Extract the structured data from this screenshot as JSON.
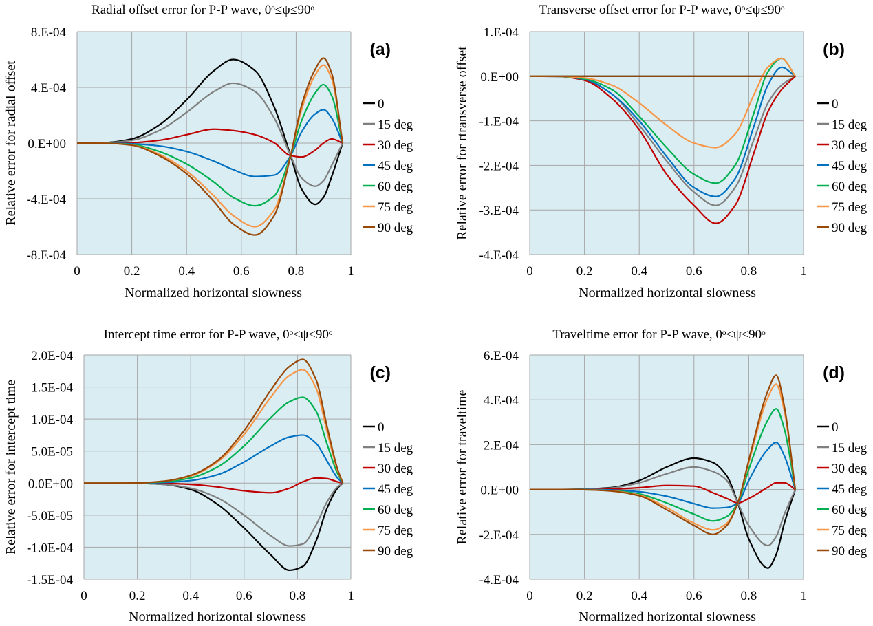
{
  "colors": {
    "plot_background": "#daedf3",
    "gridline": "#a6a6a6",
    "series": {
      "0": "#000000",
      "15 deg": "#7f7f7f",
      "30 deg": "#c00000",
      "45 deg": "#0070c0",
      "60 deg": "#00b050",
      "75 deg": "#f79646",
      "90 deg": "#984807"
    }
  },
  "chart_data": [
    {
      "type": "line",
      "panel_label": "(a)",
      "title": "Radial offset error for P-P wave, 0ᵒ≤ψ≤90ᵒ",
      "xlabel": "Normalized horizontal slowness",
      "ylabel": "Relative error for radial offset",
      "xlim": [
        0,
        1
      ],
      "ylim": [
        -0.0008,
        0.0008
      ],
      "xticks": [
        0,
        0.2,
        0.4,
        0.6,
        0.8,
        1
      ],
      "xtick_labels": [
        "0",
        "0.2",
        "0.4",
        "0.6",
        "0.8",
        "1"
      ],
      "yticks": [
        0.0008,
        0.0004,
        0,
        -0.0004,
        -0.0008
      ],
      "ytick_labels": [
        "8.E-04",
        "4.E-04",
        "0.E+00",
        "-4.E-04",
        "-8.E-04"
      ],
      "grid": true,
      "legend_position": "right",
      "x": [
        0,
        0.1,
        0.2,
        0.3,
        0.4,
        0.5,
        0.57,
        0.65,
        0.72,
        0.78,
        0.82,
        0.87,
        0.9,
        0.93,
        0.97
      ],
      "series": [
        {
          "name": "0",
          "values": [
            0,
            3e-06,
            3e-05,
            0.00013,
            0.00031,
            0.00052,
            0.0006,
            0.00052,
            0.00026,
            -9e-05,
            -0.00033,
            -0.00044,
            -0.00039,
            -0.00024,
            0
          ]
        },
        {
          "name": "15 deg",
          "values": [
            0,
            2e-06,
            2e-05,
            9e-05,
            0.00022,
            0.00037,
            0.00043,
            0.00037,
            0.00018,
            -9e-05,
            -0.00025,
            -0.00031,
            -0.00027,
            -0.00016,
            0
          ]
        },
        {
          "name": "30 deg",
          "values": [
            0,
            0,
            3e-06,
            2e-05,
            6e-05,
            0.0001,
            9e-05,
            6e-05,
            2e-06,
            -9e-05,
            -0.0001,
            -5e-05,
            0,
            3e-05,
            0
          ]
        },
        {
          "name": "45 deg",
          "values": [
            0,
            0,
            -5e-06,
            -2e-05,
            -6e-05,
            -0.00013,
            -0.00019,
            -0.00024,
            -0.00023,
            -9e-05,
            8e-05,
            0.00021,
            0.00024,
            0.00018,
            0
          ]
        },
        {
          "name": "60 deg",
          "values": [
            0,
            -1e-06,
            -1e-05,
            -6e-05,
            -0.00015,
            -0.00028,
            -0.00039,
            -0.00045,
            -0.00038,
            -9e-05,
            0.00016,
            0.00036,
            0.00042,
            0.00034,
            0
          ]
        },
        {
          "name": "75 deg",
          "values": [
            0,
            -1e-06,
            -1.4e-05,
            -8e-05,
            -0.0002,
            -0.00038,
            -0.00052,
            -0.0006,
            -0.00048,
            -9e-05,
            0.00024,
            0.00049,
            0.00056,
            0.00046,
            0
          ]
        },
        {
          "name": "90 deg",
          "values": [
            0,
            -1e-06,
            -1.5e-05,
            -9e-05,
            -0.00022,
            -0.00042,
            -0.00058,
            -0.00066,
            -0.00052,
            -9e-05,
            0.00027,
            0.00053,
            0.00061,
            0.0005,
            0
          ]
        }
      ]
    },
    {
      "type": "line",
      "panel_label": "(b)",
      "title": "Transverse offset error for P-P wave, 0ᵒ≤ψ≤90ᵒ",
      "xlabel": "Normalized horizontal slowness",
      "ylabel": "Relative error for rtransverse offset",
      "xlim": [
        0,
        1
      ],
      "ylim": [
        -0.0004,
        0.0001
      ],
      "xticks": [
        0,
        0.2,
        0.4,
        0.6,
        0.8,
        1
      ],
      "xtick_labels": [
        "0",
        "0.2",
        "0.4",
        "0.6",
        "0.8",
        "1"
      ],
      "yticks": [
        0.0001,
        0,
        -0.0001,
        -0.0002,
        -0.0003,
        -0.0004
      ],
      "ytick_labels": [
        "1.E-04",
        "0.E+00",
        "-1.E-04",
        "-2.E-04",
        "-3.E-04",
        "-4.E-04"
      ],
      "grid": true,
      "legend_position": "right",
      "x": [
        0,
        0.1,
        0.2,
        0.3,
        0.4,
        0.5,
        0.6,
        0.68,
        0.75,
        0.82,
        0.87,
        0.92,
        0.97
      ],
      "series": [
        {
          "name": "0",
          "values": [
            0,
            0,
            0,
            0,
            0,
            0,
            0,
            0,
            0,
            0,
            0,
            0,
            0
          ]
        },
        {
          "name": "15 deg",
          "values": [
            0,
            -3e-07,
            -8e-06,
            -4e-05,
            -0.00011,
            -0.00019,
            -0.00026,
            -0.00029,
            -0.00025,
            -0.00014,
            -6e-05,
            -2e-05,
            0
          ]
        },
        {
          "name": "30 deg",
          "values": [
            0,
            -3e-07,
            -9e-06,
            -5e-05,
            -0.00012,
            -0.00022,
            -0.00029,
            -0.00033,
            -0.00029,
            -0.00017,
            -8e-05,
            -3e-05,
            0
          ]
        },
        {
          "name": "45 deg",
          "values": [
            0,
            -3e-07,
            -7e-06,
            -4e-05,
            -0.0001,
            -0.00018,
            -0.00025,
            -0.00027,
            -0.00023,
            -0.00011,
            -2e-05,
            2e-05,
            0
          ]
        },
        {
          "name": "60 deg",
          "values": [
            0,
            -2e-07,
            -6e-06,
            -3e-05,
            -9e-05,
            -0.00016,
            -0.00022,
            -0.00024,
            -0.0002,
            -8e-05,
            1e-05,
            4e-05,
            0
          ]
        },
        {
          "name": "75 deg",
          "values": [
            0,
            -2e-07,
            -4e-06,
            -2e-05,
            -6e-05,
            -0.00011,
            -0.00015,
            -0.00016,
            -0.00013,
            -4e-05,
            2e-05,
            4e-05,
            0
          ]
        },
        {
          "name": "90 deg",
          "values": [
            0,
            0,
            0,
            0,
            0,
            0,
            0,
            0,
            0,
            0,
            0,
            0,
            0
          ]
        }
      ]
    },
    {
      "type": "line",
      "panel_label": "(c)",
      "title": "Intercept time error for P-P wave, 0ᵒ≤ψ≤90ᵒ",
      "xlabel": "Normalized horizontal slowness",
      "ylabel": "Relative error for intercept time",
      "xlim": [
        0,
        1
      ],
      "ylim": [
        -0.00015,
        0.0002
      ],
      "xticks": [
        0,
        0.2,
        0.4,
        0.6,
        0.8,
        1
      ],
      "xtick_labels": [
        "0",
        "0.2",
        "0.4",
        "0.6",
        "0.8",
        "1"
      ],
      "yticks": [
        0.0002,
        0.00015,
        0.0001,
        5e-05,
        0,
        -5e-05,
        -0.0001,
        -0.00015
      ],
      "ytick_labels": [
        "2.0E-04",
        "1.5E-04",
        "1.0E-04",
        "5.0E-05",
        "0.0E+00",
        "-5.0E-05",
        "-1.0E-04",
        "-1.5E-04"
      ],
      "grid": true,
      "legend_position": "right",
      "x": [
        0,
        0.1,
        0.2,
        0.3,
        0.4,
        0.5,
        0.6,
        0.7,
        0.77,
        0.82,
        0.87,
        0.91,
        0.95,
        0.97
      ],
      "series": [
        {
          "name": "0",
          "values": [
            0,
            0,
            -2e-07,
            -2e-06,
            -1e-05,
            -3.3e-05,
            -7e-05,
            -0.000112,
            -0.000136,
            -0.00013,
            -9e-05,
            -4e-05,
            -8e-06,
            0
          ]
        },
        {
          "name": "15 deg",
          "values": [
            0,
            0,
            -2e-07,
            -2e-06,
            -8e-06,
            -2.3e-05,
            -5e-05,
            -8.2e-05,
            -9.8e-05,
            -9.5e-05,
            -6.5e-05,
            -3e-05,
            -6e-06,
            0
          ]
        },
        {
          "name": "30 deg",
          "values": [
            0,
            0,
            0,
            -5e-07,
            -2e-06,
            -6e-06,
            -1.2e-05,
            -1.5e-05,
            -8e-06,
            2e-06,
            8e-06,
            7e-06,
            2e-06,
            0
          ]
        },
        {
          "name": "45 deg",
          "values": [
            0,
            0,
            1e-07,
            1e-06,
            4e-06,
            1.3e-05,
            3.3e-05,
            5.8e-05,
            7.2e-05,
            7.5e-05,
            6.2e-05,
            3.5e-05,
            8e-06,
            0
          ]
        },
        {
          "name": "60 deg",
          "values": [
            0,
            0,
            2e-07,
            2e-06,
            8e-06,
            2.5e-05,
            5.8e-05,
            0.000102,
            0.000127,
            0.000134,
            0.000112,
            6.2e-05,
            1.5e-05,
            0
          ]
        },
        {
          "name": "75 deg",
          "values": [
            0,
            0,
            3e-07,
            3e-06,
            1.1e-05,
            3.3e-05,
            7.6e-05,
            0.000134,
            0.000168,
            0.000177,
            0.000148,
            8.2e-05,
            2e-05,
            0
          ]
        },
        {
          "name": "90 deg",
          "values": [
            0,
            0,
            3e-07,
            3e-06,
            1.2e-05,
            3.5e-05,
            8.2e-05,
            0.000145,
            0.000182,
            0.000193,
            0.000161,
            9e-05,
            2.2e-05,
            0
          ]
        }
      ]
    },
    {
      "type": "line",
      "panel_label": "(d)",
      "title": "Traveltime error for P-P wave, 0ᵒ≤ψ≤90ᵒ",
      "xlabel": "Normalized horizontal slowness",
      "ylabel": "Relative error for traveltime",
      "xlim": [
        0,
        1
      ],
      "ylim": [
        -0.0004,
        0.0006
      ],
      "xticks": [
        0,
        0.2,
        0.4,
        0.6,
        0.8,
        1
      ],
      "xtick_labels": [
        "0",
        "0.2",
        "0.4",
        "0.6",
        "0.8",
        "1"
      ],
      "yticks": [
        0.0006,
        0.0004,
        0.0002,
        0,
        -0.0002,
        -0.0004
      ],
      "ytick_labels": [
        "6.E-04",
        "4.E-04",
        "2.E-04",
        "0.E+00",
        "-2.E-04",
        "-4.E-04"
      ],
      "grid": true,
      "legend_position": "right",
      "x": [
        0,
        0.1,
        0.2,
        0.3,
        0.4,
        0.5,
        0.6,
        0.67,
        0.72,
        0.76,
        0.8,
        0.87,
        0.9,
        0.93,
        0.97
      ],
      "series": [
        {
          "name": "0",
          "values": [
            0,
            0,
            2e-06,
            9e-06,
            4e-05,
            0.0001,
            0.00014,
            0.00012,
            6e-05,
            -6e-05,
            -0.00022,
            -0.00035,
            -0.00029,
            -0.00015,
            0
          ]
        },
        {
          "name": "15 deg",
          "values": [
            0,
            0,
            1e-06,
            7e-06,
            3e-05,
            7e-05,
            0.0001,
            8e-05,
            4e-05,
            -6e-05,
            -0.00016,
            -0.00025,
            -0.00021,
            -0.00011,
            0
          ]
        },
        {
          "name": "30 deg",
          "values": [
            0,
            0,
            0,
            2e-06,
            8e-06,
            1.8e-05,
            1.5e-05,
            -1.5e-05,
            -4e-05,
            -6e-05,
            -4e-05,
            1e-05,
            3e-05,
            3e-05,
            0
          ]
        },
        {
          "name": "45 deg",
          "values": [
            0,
            0,
            0,
            -2e-06,
            -1e-05,
            -3e-05,
            -6.3e-05,
            -8.3e-05,
            -8e-05,
            -6e-05,
            4e-05,
            0.00018,
            0.00021,
            0.00015,
            0
          ]
        },
        {
          "name": "60 deg",
          "values": [
            0,
            0,
            -1e-06,
            -5e-06,
            -2e-05,
            -6e-05,
            -0.00011,
            -0.00014,
            -0.00012,
            -6e-05,
            9e-05,
            0.00031,
            0.00036,
            0.00027,
            0
          ]
        },
        {
          "name": "75 deg",
          "values": [
            0,
            0,
            -1e-06,
            -6e-06,
            -2.5e-05,
            -8e-05,
            -0.00015,
            -0.00018,
            -0.00015,
            -6e-05,
            0.00012,
            0.00041,
            0.00047,
            0.00035,
            0
          ]
        },
        {
          "name": "90 deg",
          "values": [
            0,
            0,
            -1e-06,
            -7e-06,
            -2.8e-05,
            -9e-05,
            -0.00016,
            -0.0002,
            -0.00016,
            -6e-05,
            0.00013,
            0.00044,
            0.00051,
            0.00037,
            0
          ]
        }
      ]
    }
  ]
}
